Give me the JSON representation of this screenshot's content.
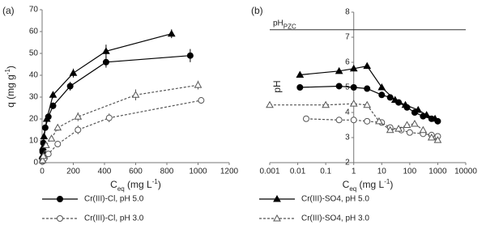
{
  "chart_data": [
    {
      "type": "scatter",
      "label": "(a)",
      "xlabel": [
        {
          "text": "C"
        },
        {
          "text": "eq",
          "shift": "sub"
        },
        {
          "text": " (mg L"
        },
        {
          "text": "-1",
          "shift": "sup"
        },
        {
          "text": ")"
        }
      ],
      "ylabel": [
        {
          "text": "q (mg g"
        },
        {
          "text": "-1",
          "shift": "sup"
        },
        {
          "text": ")"
        }
      ],
      "xlim": [
        0,
        1200
      ],
      "xticks": [
        0,
        200,
        400,
        600,
        800,
        1000,
        1200
      ],
      "ylim": [
        0,
        70
      ],
      "yticks": [
        0,
        10,
        20,
        30,
        40,
        50,
        60,
        70
      ],
      "series": [
        {
          "name": "Cr(III)-Cl, pH 5.0",
          "marker": "circle",
          "filled": true,
          "dash": false,
          "color": "#000000",
          "x": [
            1,
            3,
            8,
            20,
            40,
            70,
            180,
            410,
            950
          ],
          "values": [
            2,
            5,
            9,
            16,
            21,
            26,
            35,
            46,
            49
          ],
          "errors": [
            0.5,
            0.5,
            1,
            1,
            1,
            1.5,
            2,
            2.5,
            3
          ]
        },
        {
          "name": "Cr(III)-SO4, pH 5.0",
          "marker": "triangle",
          "filled": true,
          "dash": false,
          "color": "#000000",
          "x": [
            2,
            5,
            12,
            30,
            70,
            200,
            410,
            830
          ],
          "values": [
            3,
            7,
            12,
            20,
            31,
            41,
            51,
            59
          ],
          "errors": [
            0.5,
            0.5,
            1,
            1,
            1.5,
            2,
            3,
            2
          ]
        },
        {
          "name": "Cr(III)-Cl, pH 3.0",
          "marker": "circle",
          "filled": false,
          "dash": true,
          "color": "#555555",
          "x": [
            2,
            5,
            15,
            40,
            100,
            230,
            430,
            1020
          ],
          "values": [
            0.5,
            1,
            2,
            4,
            8.5,
            15,
            20.5,
            28.5
          ],
          "errors": [
            0.3,
            0.3,
            0.5,
            1,
            1,
            2,
            2,
            1.5
          ]
        },
        {
          "name": "Cr(III)-SO4, pH 3.0",
          "marker": "triangle",
          "filled": false,
          "dash": true,
          "color": "#555555",
          "x": [
            3,
            8,
            25,
            60,
            100,
            230,
            600,
            1000
          ],
          "values": [
            1,
            3,
            8,
            11,
            16,
            21,
            31,
            35.5
          ],
          "errors": [
            0.3,
            0.5,
            1,
            1,
            1.5,
            2,
            2.5,
            2
          ]
        }
      ]
    },
    {
      "type": "scatter",
      "label": "(b)",
      "xlog": true,
      "xlabel": [
        {
          "text": "C"
        },
        {
          "text": "eq",
          "shift": "sub"
        },
        {
          "text": " (mg L"
        },
        {
          "text": "-1",
          "shift": "sup"
        },
        {
          "text": ")"
        }
      ],
      "ylabel": [
        {
          "text": "pH"
        }
      ],
      "xlim": [
        0.001,
        10000
      ],
      "xticks": [
        0.001,
        0.01,
        0.1,
        1,
        10,
        100,
        1000,
        10000
      ],
      "ylim": [
        2,
        8
      ],
      "yticks": [
        2,
        3,
        4,
        5,
        6,
        7,
        8
      ],
      "yaxis_at": 1,
      "hline": {
        "value": 7.3,
        "label": [
          {
            "text": "pH"
          },
          {
            "text": "PZC",
            "shift": "sub"
          }
        ]
      },
      "series": [
        {
          "marker": "circle",
          "filled": true,
          "dash": false,
          "color": "#000000",
          "x": [
            0.012,
            0.3,
            1,
            3,
            10,
            20,
            40,
            80,
            150,
            300,
            600,
            1000
          ],
          "values": [
            5.0,
            5.05,
            5.0,
            4.95,
            4.7,
            4.6,
            4.4,
            4.2,
            4.0,
            3.85,
            3.75,
            3.65
          ]
        },
        {
          "marker": "triangle",
          "filled": true,
          "dash": false,
          "color": "#000000",
          "x": [
            0.012,
            0.3,
            1,
            3,
            10,
            30,
            70,
            200,
            400,
            800
          ],
          "values": [
            5.5,
            5.65,
            5.75,
            5.85,
            5.0,
            4.5,
            4.3,
            4.1,
            3.9,
            3.75
          ]
        },
        {
          "marker": "circle",
          "filled": false,
          "dash": true,
          "color": "#555555",
          "x": [
            0.02,
            0.3,
            1,
            3,
            10,
            20,
            50,
            100,
            300,
            600,
            1000
          ],
          "values": [
            3.75,
            3.7,
            3.7,
            3.65,
            3.6,
            3.4,
            3.3,
            3.2,
            3.15,
            3.1,
            3.05
          ]
        },
        {
          "marker": "triangle",
          "filled": false,
          "dash": true,
          "color": "#555555",
          "x": [
            0.001,
            0.1,
            1,
            3,
            8,
            20,
            40,
            80,
            150,
            300,
            600,
            1000
          ],
          "values": [
            4.3,
            4.3,
            4.35,
            4.3,
            3.65,
            3.3,
            3.35,
            3.5,
            3.55,
            3.3,
            3.0,
            2.9
          ]
        }
      ]
    }
  ]
}
